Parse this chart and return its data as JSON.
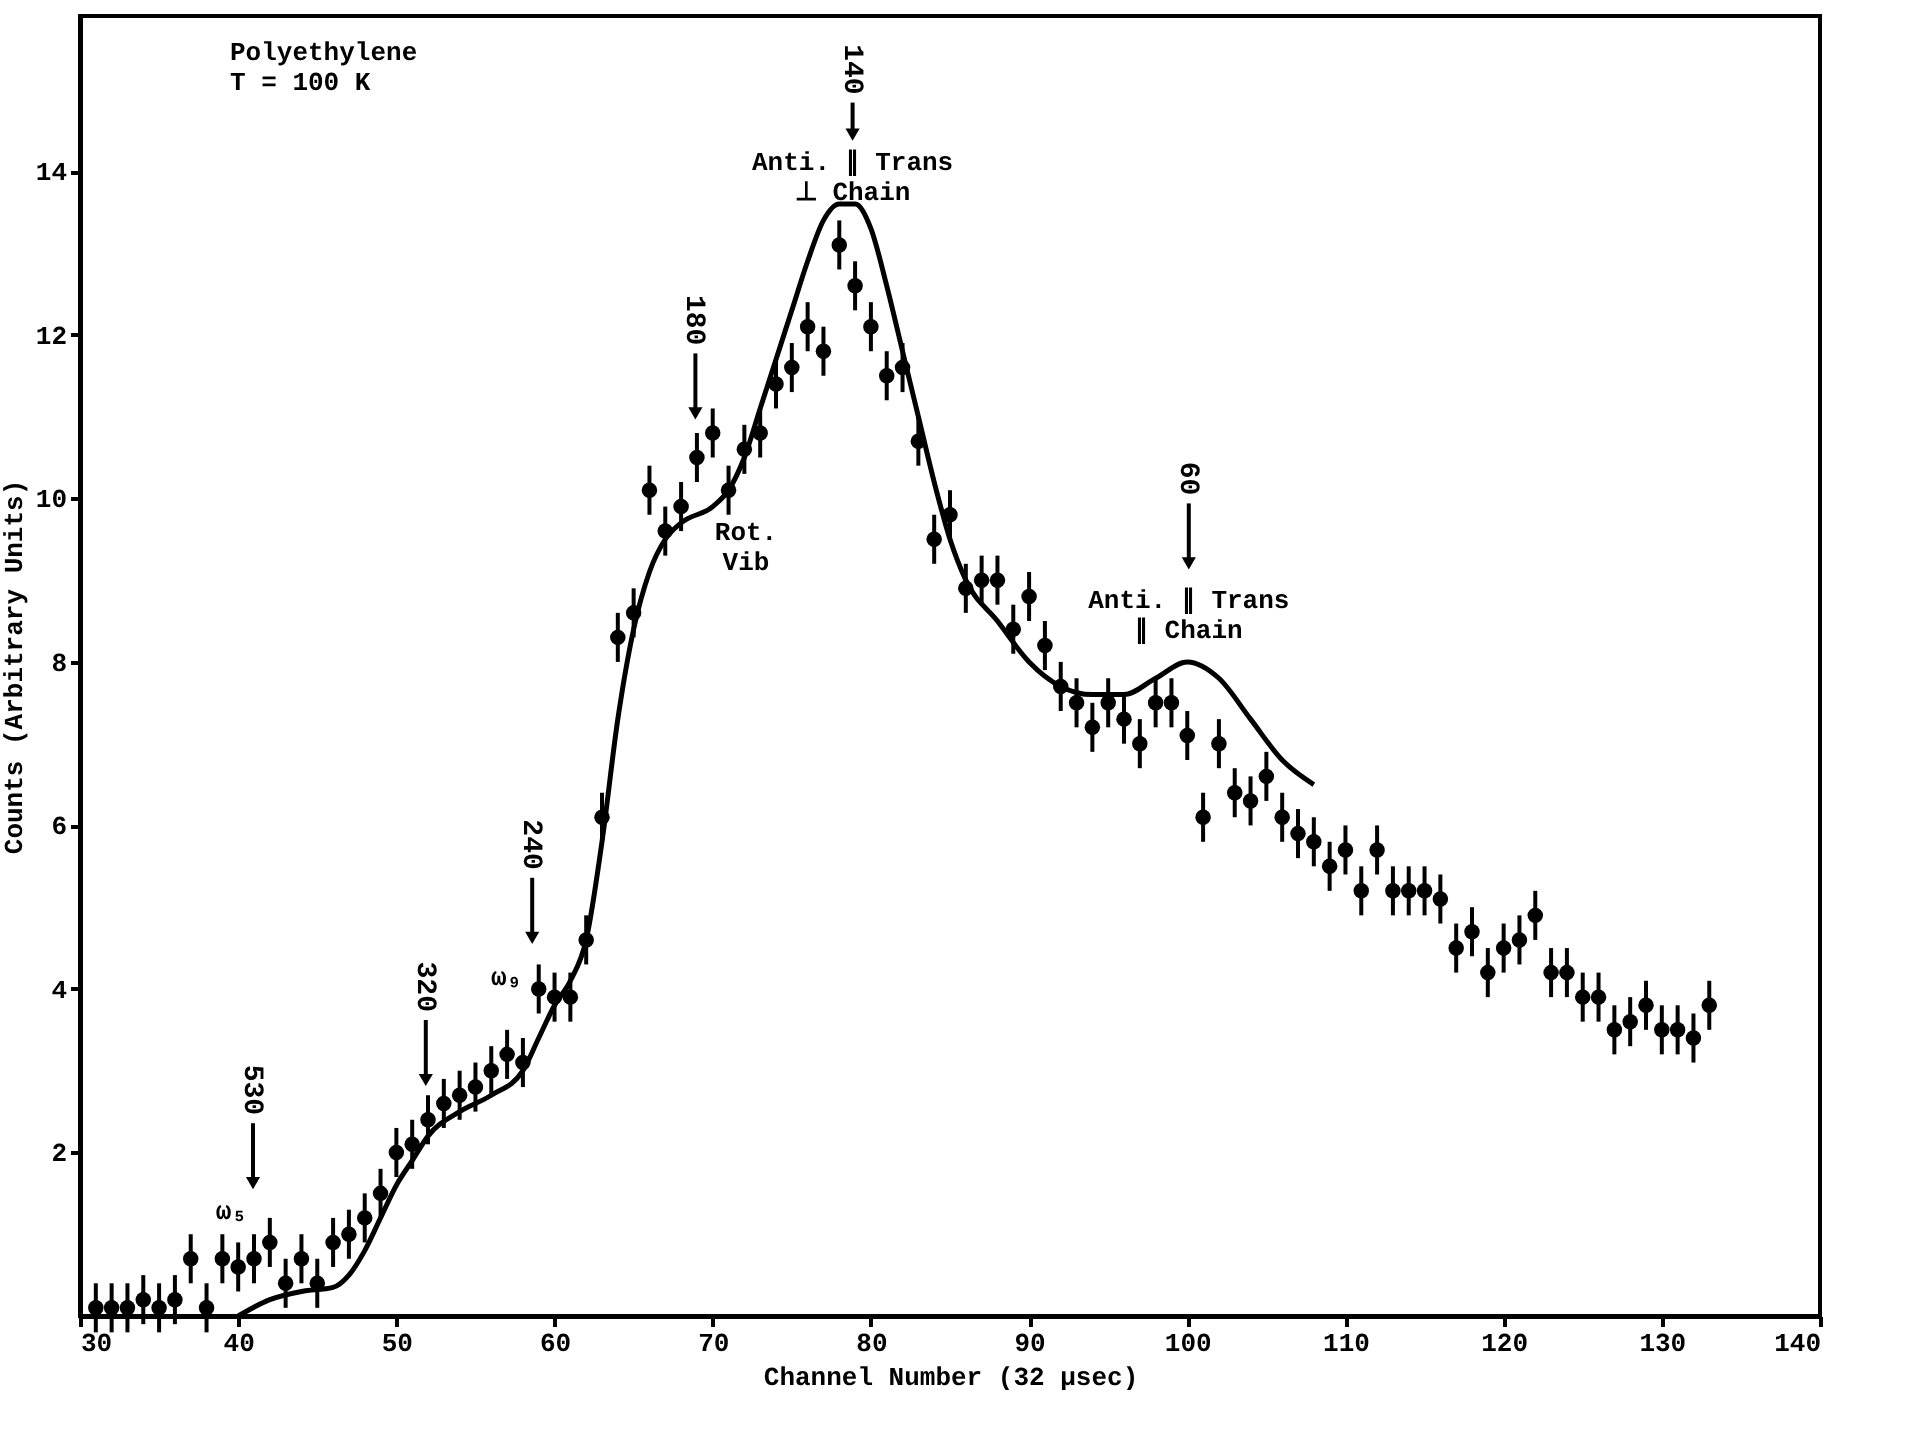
{
  "chart_data": {
    "type": "scatter",
    "title": "Polyethylene",
    "subtitle": "T = 100 K",
    "xlabel": "Channel Number (32 μsec)",
    "ylabel": "Counts (Arbitrary Units)",
    "xlim": [
      30,
      140
    ],
    "ylim": [
      0,
      15.9
    ],
    "xticks": [
      30,
      40,
      50,
      60,
      70,
      80,
      90,
      100,
      110,
      120,
      130,
      140
    ],
    "yticks": [
      2,
      4,
      6,
      8,
      10,
      12,
      14
    ],
    "grid": false,
    "marker": "circle",
    "series": [
      {
        "color": "#000000",
        "x": [
          31,
          32,
          33,
          34,
          35,
          36,
          37,
          38,
          39,
          40,
          41,
          42,
          43,
          44,
          45,
          46,
          47,
          48,
          49,
          50,
          51,
          52,
          53,
          54,
          55,
          56,
          57,
          58,
          59,
          60,
          61,
          62,
          63,
          64,
          65,
          66,
          67,
          68,
          69,
          70,
          71,
          72,
          73,
          74,
          75,
          76,
          77,
          78,
          79,
          80,
          81,
          82,
          83,
          84,
          85,
          86,
          87,
          88,
          89,
          90,
          91,
          92,
          93,
          94,
          95,
          96,
          97,
          98,
          99,
          100,
          101,
          102,
          103,
          104,
          105,
          106,
          107,
          108,
          109,
          110,
          111,
          112,
          113,
          114,
          115,
          116,
          117,
          118,
          119,
          120,
          121,
          122,
          123,
          124,
          125,
          126,
          127,
          128,
          129,
          130,
          131,
          132,
          133
        ],
        "values": [
          0.1,
          0.1,
          0.1,
          0.2,
          0.1,
          0.2,
          0.7,
          0.1,
          0.7,
          0.6,
          0.7,
          0.9,
          0.4,
          0.7,
          0.4,
          0.9,
          1.0,
          1.2,
          1.5,
          2.0,
          2.1,
          2.4,
          2.6,
          2.7,
          2.8,
          3.0,
          3.2,
          3.1,
          4.0,
          3.9,
          3.9,
          4.6,
          6.1,
          8.3,
          8.6,
          10.1,
          9.6,
          9.9,
          10.5,
          10.8,
          10.1,
          10.6,
          10.8,
          11.4,
          11.6,
          12.1,
          11.8,
          13.1,
          12.6,
          12.1,
          11.5,
          11.6,
          10.7,
          9.5,
          9.8,
          8.9,
          9.0,
          9.0,
          8.4,
          8.8,
          8.2,
          7.7,
          7.5,
          7.2,
          7.5,
          7.3,
          7.0,
          7.5,
          7.5,
          7.1,
          6.1,
          7.0,
          6.4,
          6.3,
          6.6,
          6.1,
          5.9,
          5.8,
          5.5,
          5.7,
          5.2,
          5.7,
          5.2,
          5.2,
          5.2,
          5.1,
          4.5,
          4.7,
          4.2,
          4.5,
          4.6,
          4.9,
          4.2,
          4.2,
          3.9,
          3.9,
          3.5,
          3.6,
          3.8,
          3.5,
          3.5,
          3.4,
          3.8
        ],
        "errors": [
          0.3,
          0.3,
          0.3,
          0.3,
          0.3,
          0.3,
          0.3,
          0.3,
          0.3,
          0.3,
          0.3,
          0.3,
          0.3,
          0.3,
          0.3,
          0.3,
          0.3,
          0.3,
          0.3,
          0.3,
          0.3,
          0.3,
          0.3,
          0.3,
          0.3,
          0.3,
          0.3,
          0.3,
          0.3,
          0.3,
          0.3,
          0.3,
          0.3,
          0.3,
          0.3,
          0.3,
          0.3,
          0.3,
          0.3,
          0.3,
          0.3,
          0.3,
          0.3,
          0.3,
          0.3,
          0.3,
          0.3,
          0.3,
          0.3,
          0.3,
          0.3,
          0.3,
          0.3,
          0.3,
          0.3,
          0.3,
          0.3,
          0.3,
          0.3,
          0.3,
          0.3,
          0.3,
          0.3,
          0.3,
          0.3,
          0.3,
          0.3,
          0.3,
          0.3,
          0.3,
          0.3,
          0.3,
          0.3,
          0.3,
          0.3,
          0.3,
          0.3,
          0.3,
          0.3,
          0.3,
          0.3,
          0.3,
          0.3,
          0.3,
          0.3,
          0.3,
          0.3,
          0.3,
          0.3,
          0.3,
          0.3,
          0.3,
          0.3,
          0.3,
          0.3,
          0.3,
          0.3,
          0.3,
          0.3,
          0.3,
          0.3,
          0.3,
          0.3
        ]
      },
      {
        "type": "line",
        "marker": "none",
        "color": "#000000",
        "x": [
          40,
          42,
          44,
          46,
          47,
          48,
          49,
          50,
          51,
          52,
          54,
          56,
          58,
          59,
          60,
          61,
          62,
          63,
          64,
          65,
          66,
          67,
          68,
          70,
          71,
          72,
          73,
          74,
          75,
          76,
          77,
          78,
          79,
          80,
          81,
          82,
          83,
          84,
          85,
          86,
          88,
          90,
          92,
          94,
          96,
          98,
          100,
          102,
          104,
          106,
          108
        ],
        "values": [
          0,
          0.2,
          0.3,
          0.35,
          0.5,
          0.8,
          1.2,
          1.6,
          1.9,
          2.2,
          2.5,
          2.7,
          3.0,
          3.4,
          3.8,
          4.1,
          4.6,
          5.8,
          7.3,
          8.4,
          9.1,
          9.5,
          9.7,
          9.9,
          10.1,
          10.5,
          11.1,
          11.7,
          12.3,
          12.9,
          13.4,
          13.6,
          13.6,
          13.3,
          12.6,
          11.8,
          11.0,
          10.2,
          9.5,
          9.0,
          8.5,
          8.0,
          7.7,
          7.6,
          7.6,
          7.8,
          8.0,
          7.8,
          7.3,
          6.8,
          6.5
        ]
      }
    ],
    "annotations": [
      "530",
      "320",
      "240",
      "180",
      "140",
      "60",
      "ω₅",
      "ω₉",
      "Anti. ∥ Trans\n⊥ Chain",
      "Rot.\nVib",
      "Anti. ∥ Trans\n∥ Chain"
    ]
  }
}
